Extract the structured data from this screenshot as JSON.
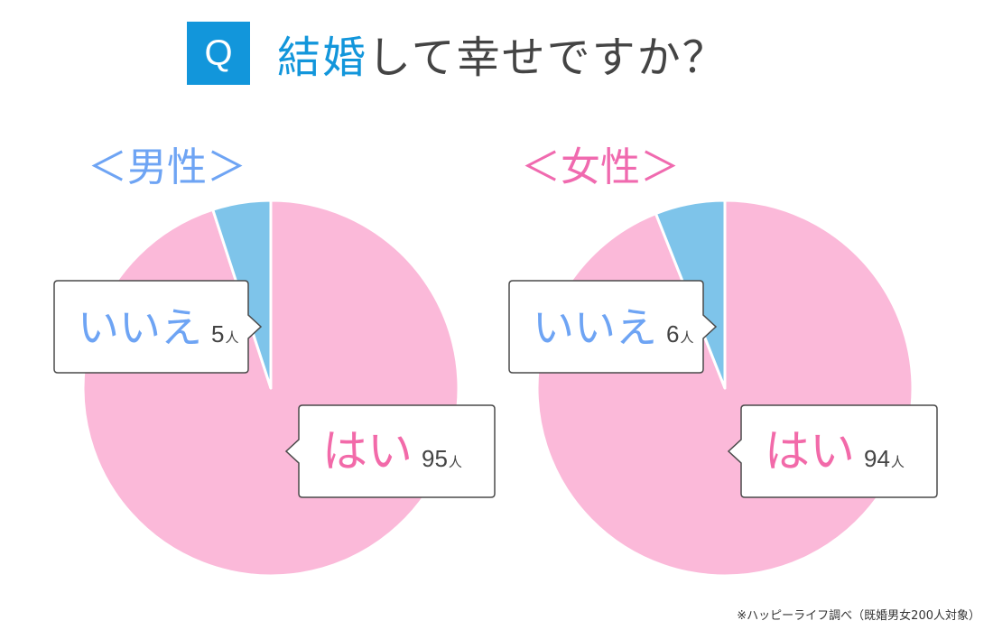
{
  "header": {
    "q_label": "Q",
    "question_accent": "結婚",
    "question_rest": "して幸せですか？",
    "accent_color": "#1296db"
  },
  "chart_data": [
    {
      "type": "pie",
      "group_label": "＜男性＞",
      "label_color": "#6ea4f4",
      "slices": [
        {
          "label": "はい",
          "value": 95,
          "unit": "人",
          "color": "#fbb9d9",
          "label_color": "#f26aa9"
        },
        {
          "label": "いいえ",
          "value": 5,
          "unit": "人",
          "color": "#7ec4ea",
          "label_color": "#6ea4f4"
        }
      ]
    },
    {
      "type": "pie",
      "group_label": "＜女性＞",
      "label_color": "#f06aaf",
      "slices": [
        {
          "label": "はい",
          "value": 94,
          "unit": "人",
          "color": "#fbb9d9",
          "label_color": "#f26aa9"
        },
        {
          "label": "いいえ",
          "value": 6,
          "unit": "人",
          "color": "#7ec4ea",
          "label_color": "#6ea4f4"
        }
      ]
    }
  ],
  "footnote": "※ハッピーライフ調べ（既婚男女200人対象）"
}
